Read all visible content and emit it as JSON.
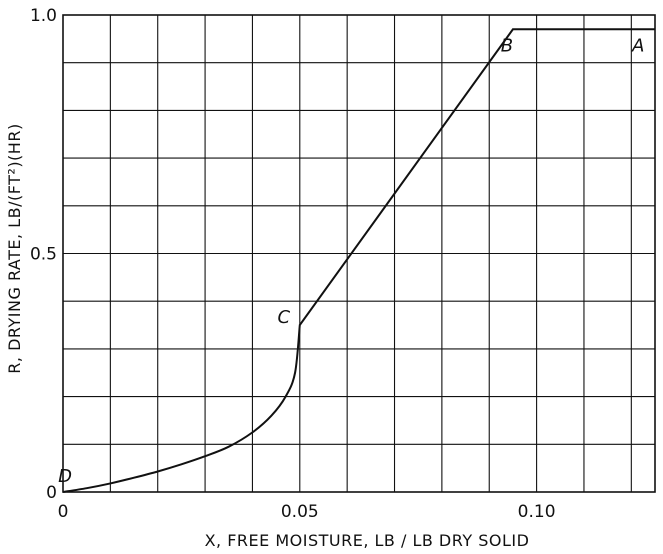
{
  "chart_data": {
    "type": "line",
    "xlabel": "X, FREE MOISTURE, LB / LB DRY SOLID",
    "ylabel": "R, DRYING RATE, LB/(FT²)(HR)",
    "xlim": [
      0,
      0.125
    ],
    "ylim": [
      0,
      1.0
    ],
    "grid": true,
    "x_ticks": [
      {
        "value": 0,
        "label": "0"
      },
      {
        "value": 0.05,
        "label": "0.05"
      },
      {
        "value": 0.1,
        "label": "0.10"
      }
    ],
    "y_ticks": [
      {
        "value": 0,
        "label": "0"
      },
      {
        "value": 0.5,
        "label": "0.5"
      },
      {
        "value": 1.0,
        "label": "1.0"
      }
    ],
    "series": [
      {
        "x": [
          0,
          0.005,
          0.01,
          0.015,
          0.02,
          0.025,
          0.03,
          0.035,
          0.04,
          0.044,
          0.047,
          0.049,
          0.05,
          0.095,
          0.125
        ],
        "y": [
          0,
          0.008,
          0.018,
          0.03,
          0.043,
          0.058,
          0.075,
          0.095,
          0.125,
          0.16,
          0.2,
          0.25,
          0.35,
          0.97,
          0.97
        ]
      }
    ],
    "point_labels": [
      {
        "label": "A",
        "x": 0.124,
        "y": 0.97
      },
      {
        "label": "B",
        "x": 0.095,
        "y": 0.97
      },
      {
        "label": "C",
        "x": 0.05,
        "y": 0.35
      },
      {
        "label": "D",
        "x": 0.0,
        "y": 0.0
      }
    ]
  }
}
